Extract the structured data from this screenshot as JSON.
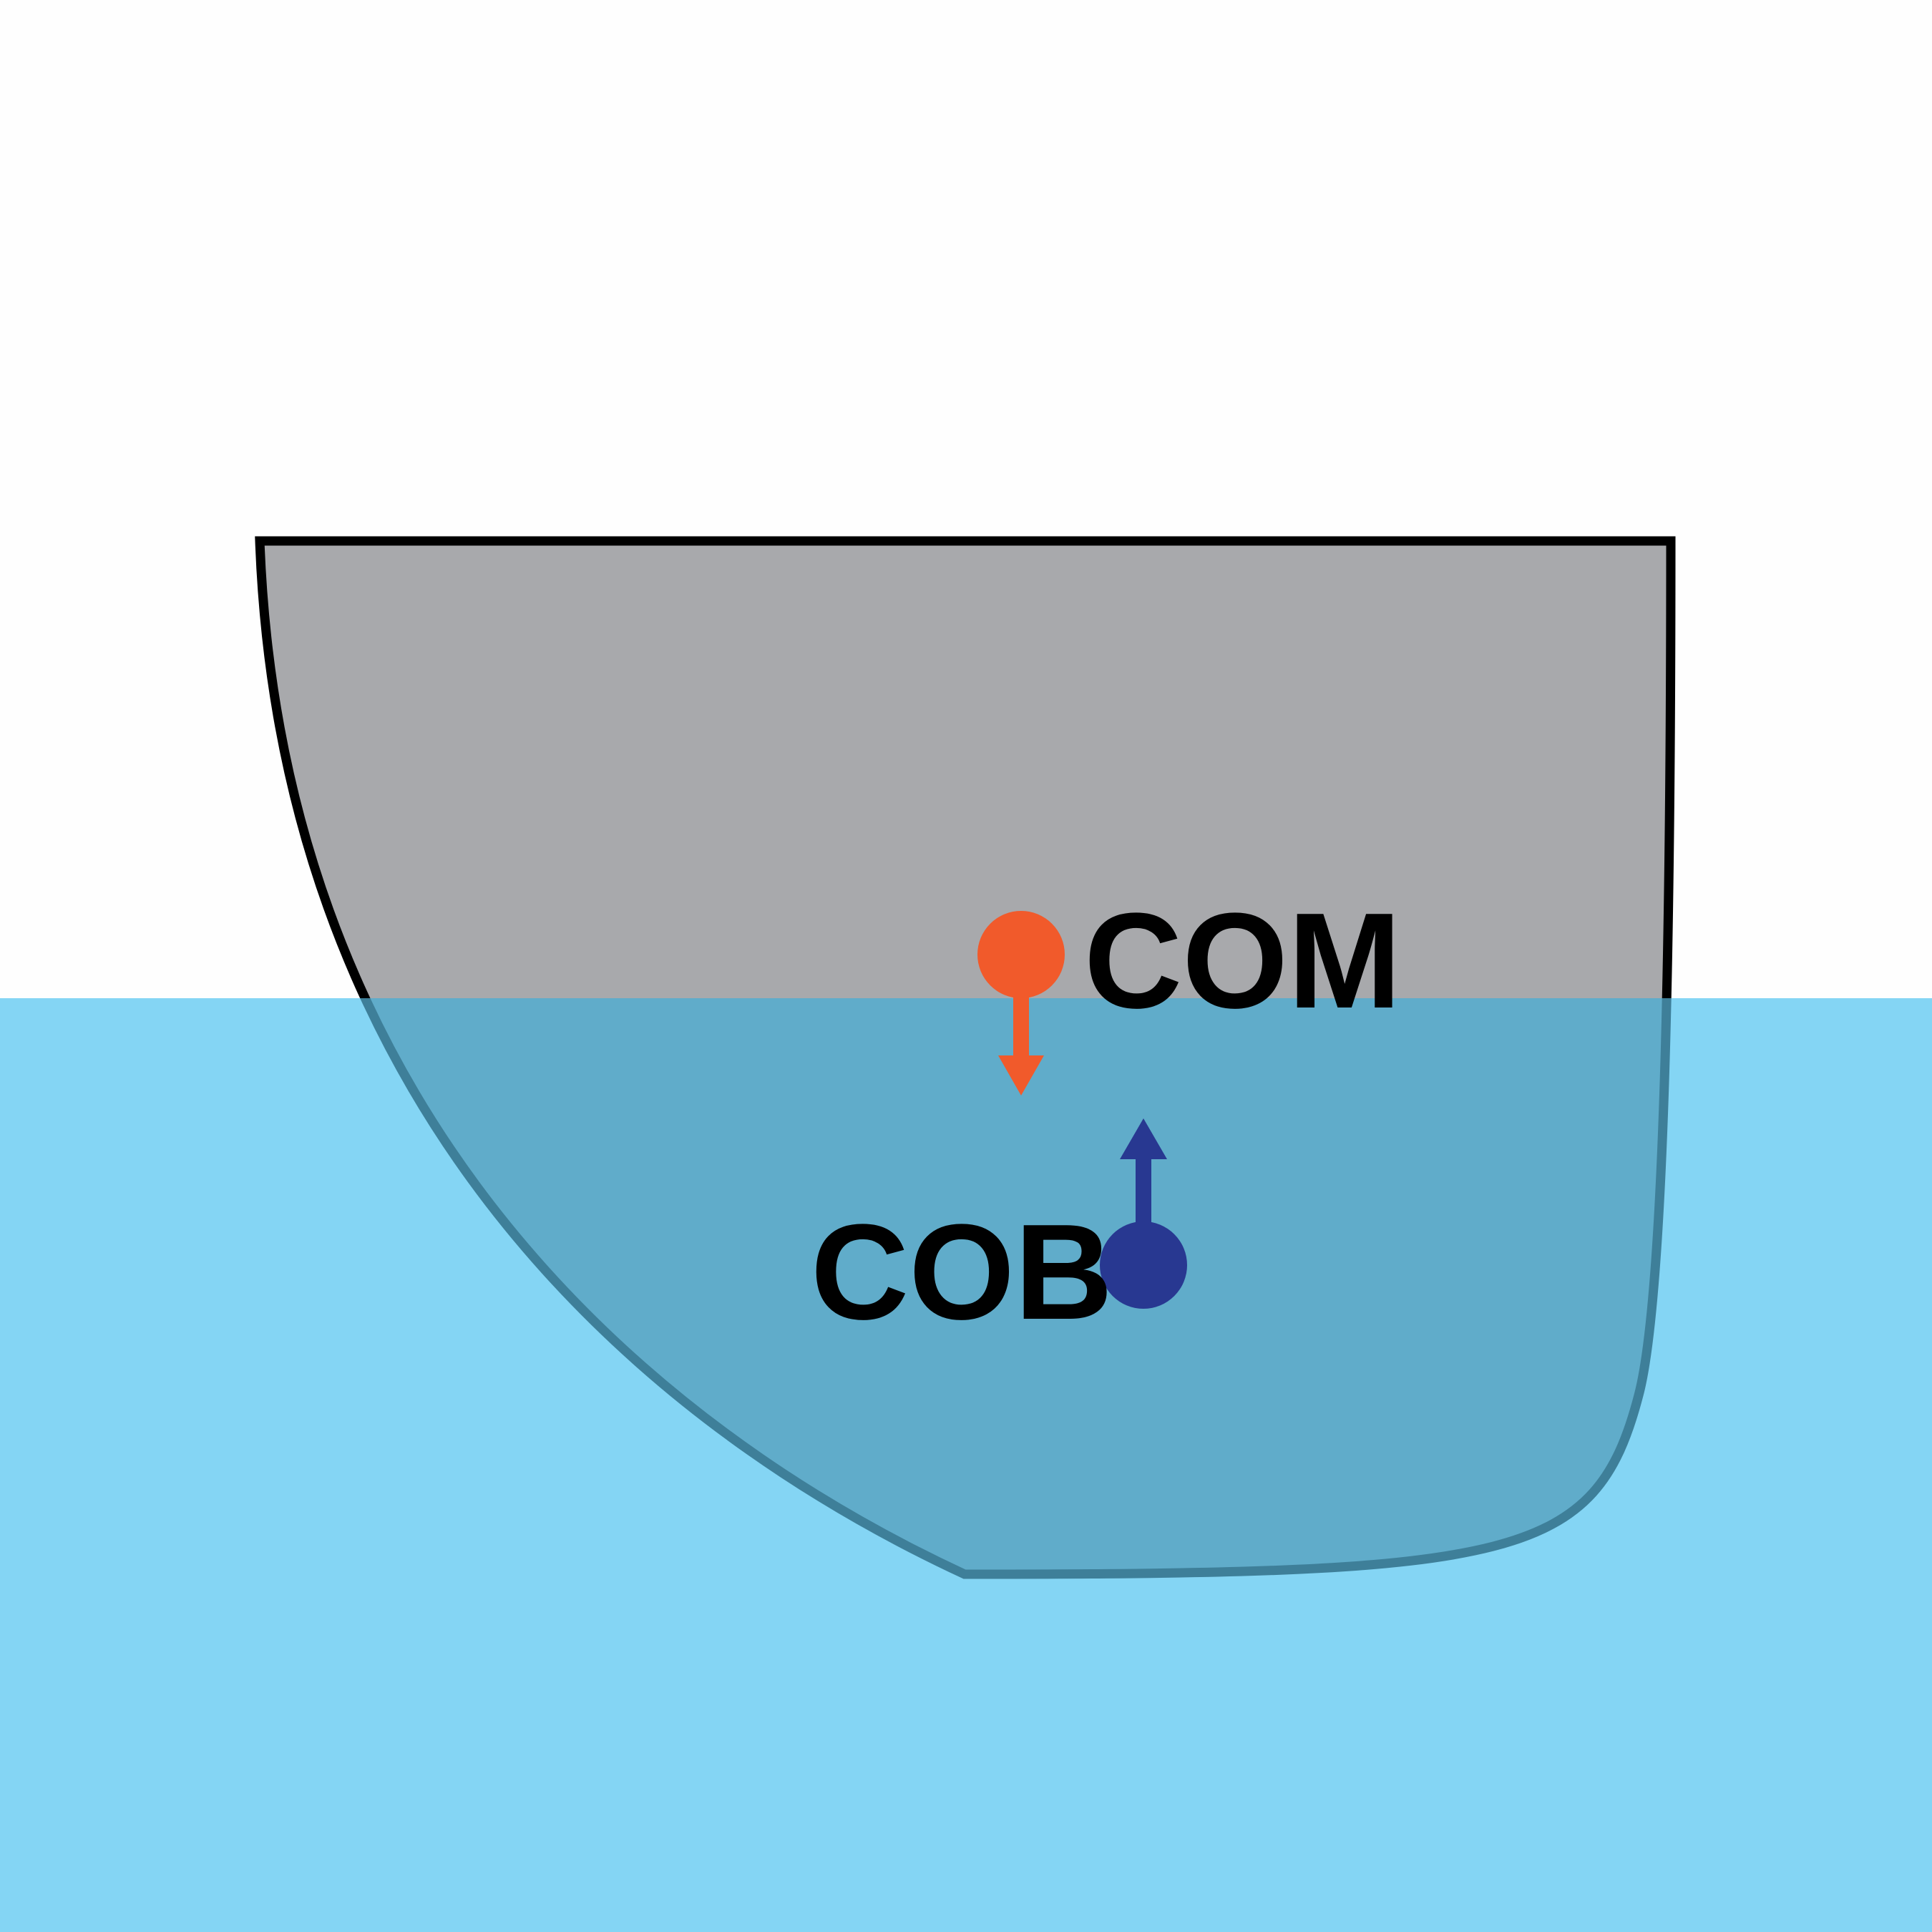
{
  "labels": {
    "com": "COM",
    "cob": "COB"
  },
  "colors": {
    "background": "#fefefe",
    "water": "#84d5f4",
    "hull_fill": "#a8a9ac",
    "hull_submerged": "#60acca",
    "hull_outline": "#000000",
    "hull_outline_submerged": "#3e7f99",
    "com_marker": "#f15a2b",
    "cob_marker": "#283891"
  },
  "icons": {
    "com": "down-arrow-icon",
    "cob": "up-arrow-icon"
  }
}
